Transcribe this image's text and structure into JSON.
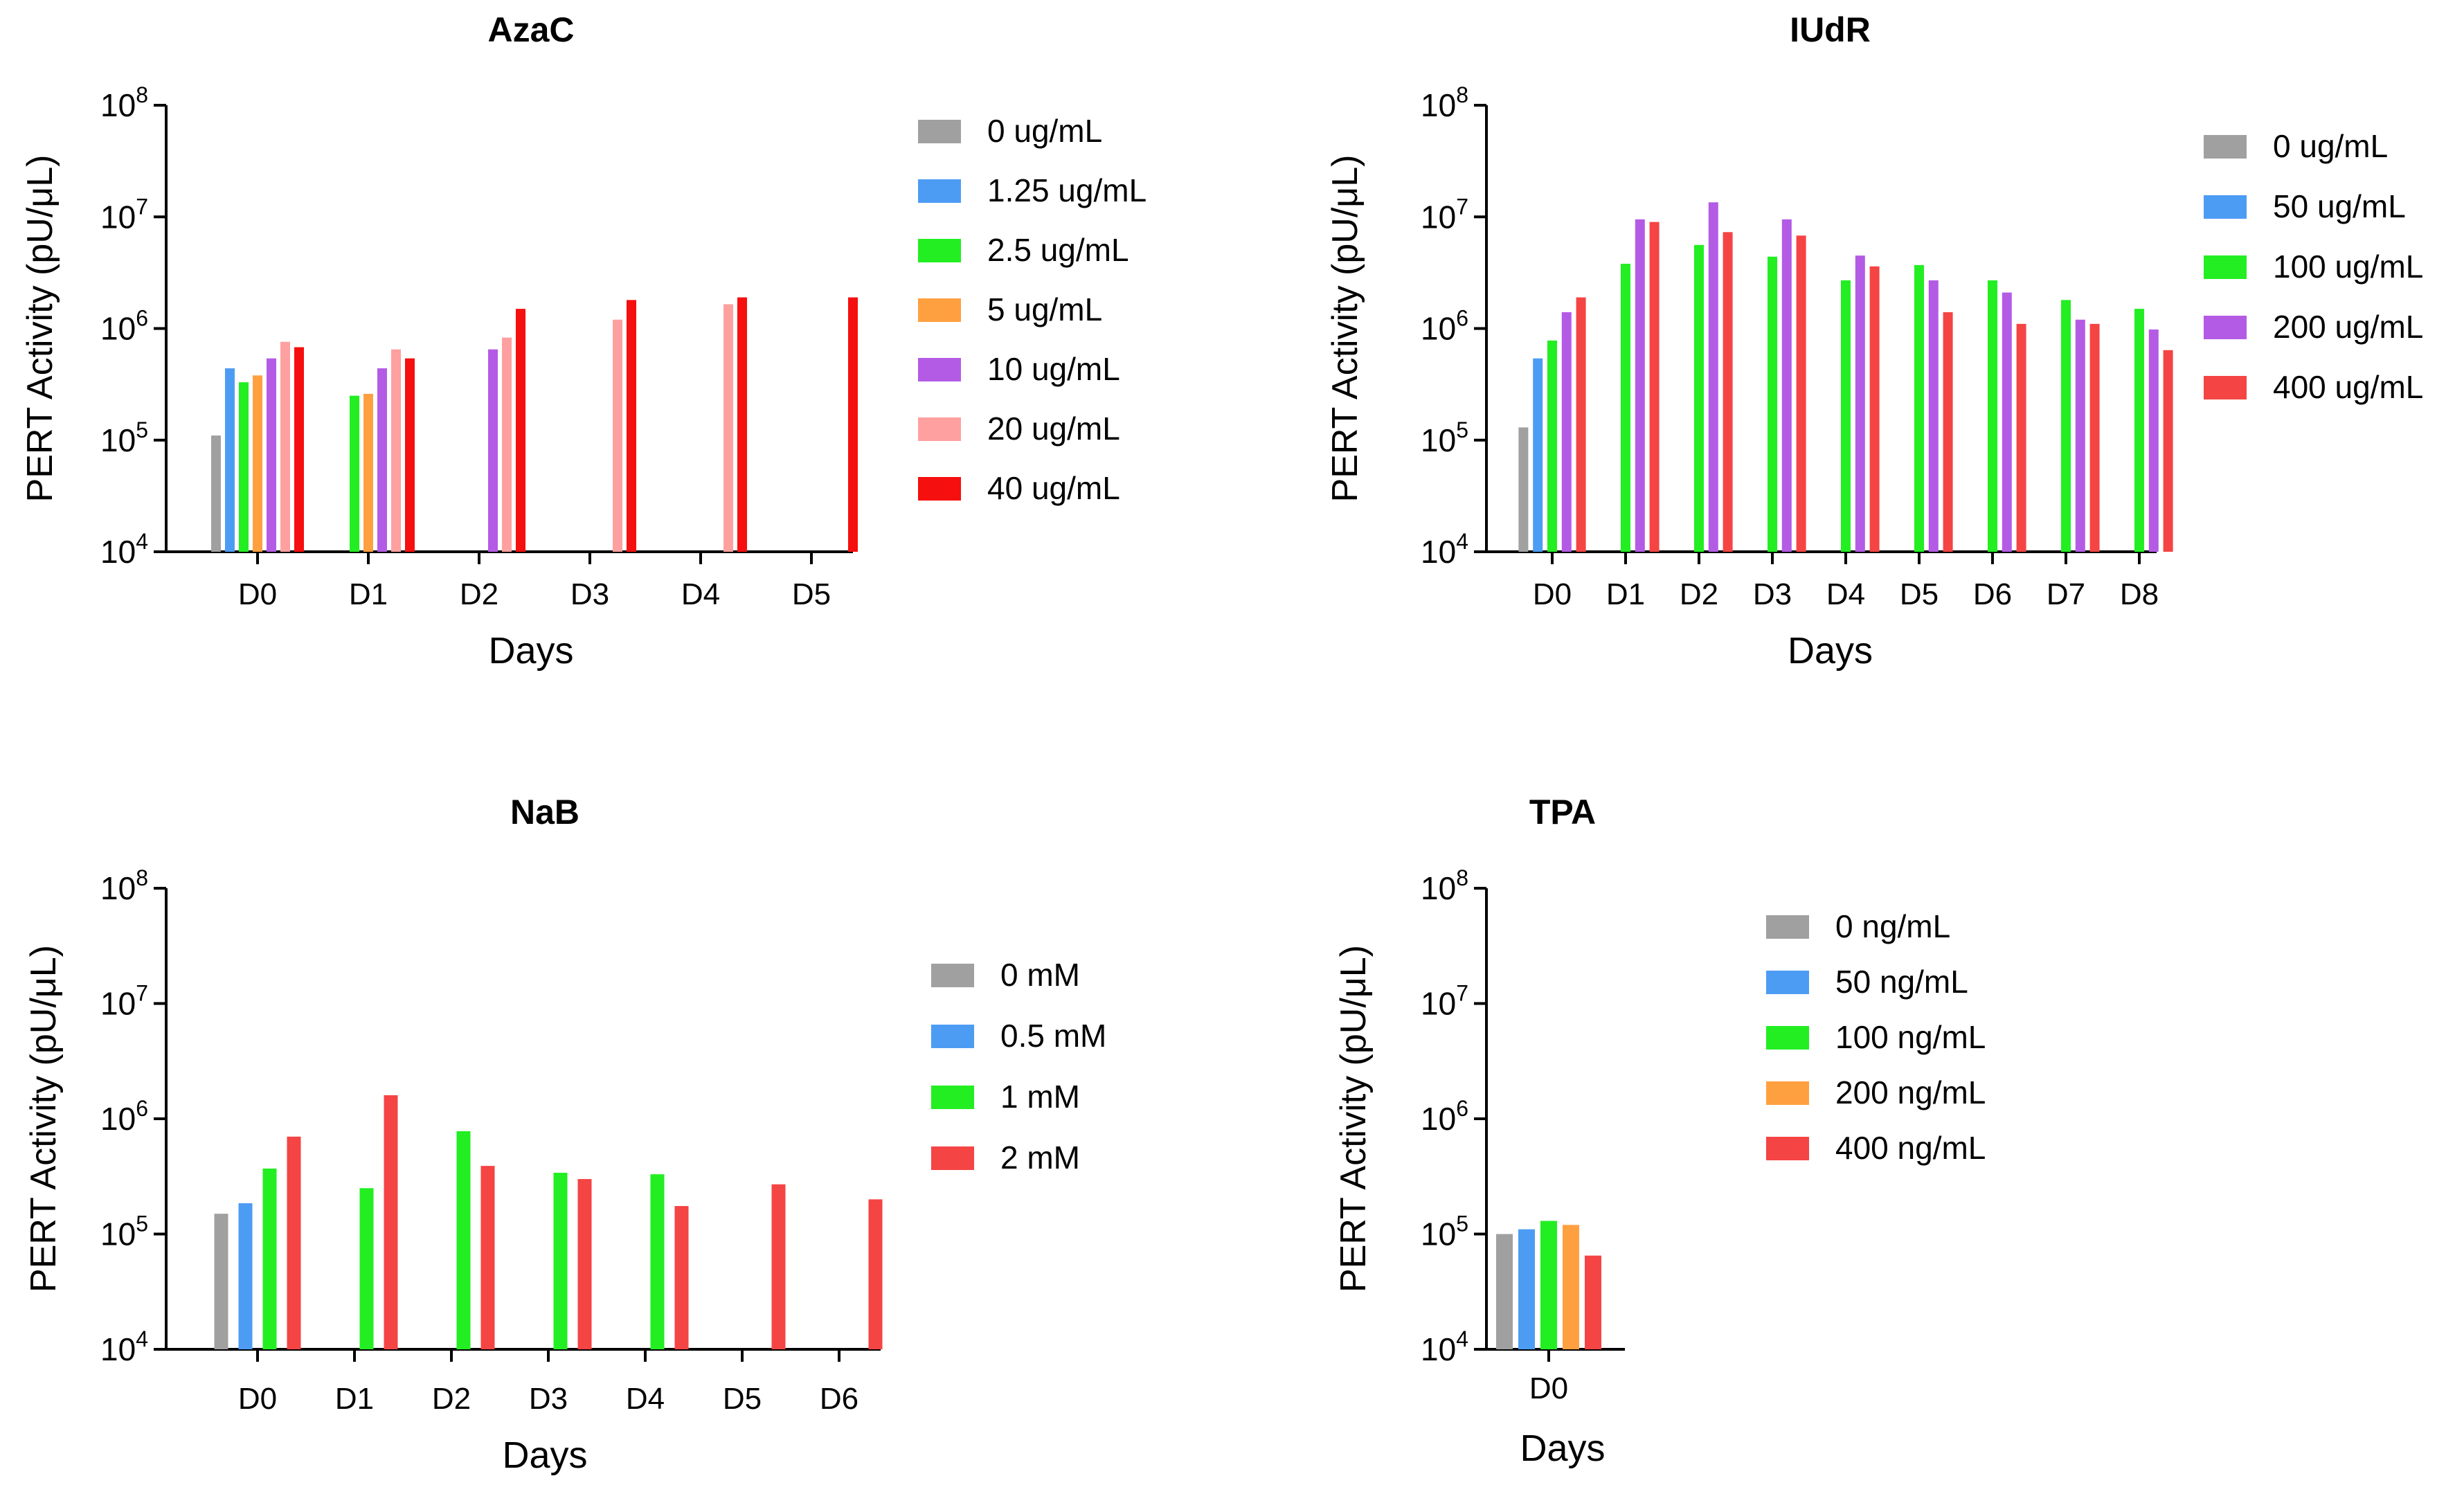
{
  "chart_data": [
    {
      "type": "bar",
      "title": "AzaC",
      "xlabel": "Days",
      "ylabel": "PERT Activity (pU/μL)",
      "yscale": "log",
      "ylim": [
        10000,
        100000000
      ],
      "yticks": [
        {
          "base": "10",
          "exp": "4"
        },
        {
          "base": "10",
          "exp": "5"
        },
        {
          "base": "10",
          "exp": "6"
        },
        {
          "base": "10",
          "exp": "7"
        },
        {
          "base": "10",
          "exp": "8"
        }
      ],
      "categories": [
        "D0",
        "D1",
        "D2",
        "D3",
        "D4",
        "D5"
      ],
      "legend_position": "right",
      "series": [
        {
          "name": "0 ug/mL",
          "color": "#a0a0a0",
          "values": [
            110000,
            null,
            null,
            null,
            null,
            null
          ]
        },
        {
          "name": "1.25 ug/mL",
          "color": "#4d9cf4",
          "values": [
            440000,
            null,
            null,
            null,
            null,
            null
          ]
        },
        {
          "name": "2.5 ug/mL",
          "color": "#22ee22",
          "values": [
            330000,
            250000,
            null,
            null,
            null,
            null
          ]
        },
        {
          "name": "5 ug/mL",
          "color": "#ffa040",
          "values": [
            380000,
            260000,
            null,
            null,
            null,
            null
          ]
        },
        {
          "name": "10 ug/mL",
          "color": "#b45be6",
          "values": [
            540000,
            440000,
            650000,
            null,
            null,
            null
          ]
        },
        {
          "name": "20 ug/mL",
          "color": "#ffa0a0",
          "values": [
            760000,
            650000,
            830000,
            1200000,
            1650000,
            null
          ]
        },
        {
          "name": "40 ug/mL",
          "color": "#f50f0f",
          "values": [
            680000,
            540000,
            1500000,
            1800000,
            1900000,
            1900000
          ]
        }
      ]
    },
    {
      "type": "bar",
      "title": "IUdR",
      "xlabel": "Days",
      "ylabel": "PERT Activity (pU/μL)",
      "yscale": "log",
      "ylim": [
        10000,
        100000000
      ],
      "yticks": [
        {
          "base": "10",
          "exp": "4"
        },
        {
          "base": "10",
          "exp": "5"
        },
        {
          "base": "10",
          "exp": "6"
        },
        {
          "base": "10",
          "exp": "7"
        },
        {
          "base": "10",
          "exp": "8"
        }
      ],
      "categories": [
        "D0",
        "D1",
        "D2",
        "D3",
        "D4",
        "D5",
        "D6",
        "D7",
        "D8"
      ],
      "legend_position": "right",
      "series": [
        {
          "name": "0 ug/mL",
          "color": "#a0a0a0",
          "values": [
            130000,
            null,
            null,
            null,
            null,
            null,
            null,
            null,
            null
          ]
        },
        {
          "name": "50 ug/mL",
          "color": "#4d9cf4",
          "values": [
            540000,
            null,
            null,
            null,
            null,
            null,
            null,
            null,
            null
          ]
        },
        {
          "name": "100 ug/mL",
          "color": "#22ee22",
          "values": [
            780000,
            3800000,
            5600000,
            4400000,
            2700000,
            3700000,
            2700000,
            1800000,
            1500000
          ]
        },
        {
          "name": "200 ug/mL",
          "color": "#b45be6",
          "values": [
            1400000,
            9500000,
            13500000,
            9500000,
            4500000,
            2700000,
            2100000,
            1200000,
            980000
          ]
        },
        {
          "name": "400 ug/mL",
          "color": "#f54444",
          "values": [
            1900000,
            9000000,
            7300000,
            6800000,
            3600000,
            1400000,
            1100000,
            1100000,
            640000
          ]
        }
      ]
    },
    {
      "type": "bar",
      "title": "NaB",
      "xlabel": "Days",
      "ylabel": "PERT Activity (pU/μL)",
      "yscale": "log",
      "ylim": [
        10000,
        100000000
      ],
      "yticks": [
        {
          "base": "10",
          "exp": "4"
        },
        {
          "base": "10",
          "exp": "5"
        },
        {
          "base": "10",
          "exp": "6"
        },
        {
          "base": "10",
          "exp": "7"
        },
        {
          "base": "10",
          "exp": "8"
        }
      ],
      "categories": [
        "D0",
        "D1",
        "D2",
        "D3",
        "D4",
        "D5",
        "D6"
      ],
      "legend_position": "right",
      "series": [
        {
          "name": "0 mM",
          "color": "#a0a0a0",
          "values": [
            150000,
            null,
            null,
            null,
            null,
            null,
            null
          ]
        },
        {
          "name": "0.5 mM",
          "color": "#4d9cf4",
          "values": [
            185000,
            null,
            null,
            null,
            null,
            null,
            null
          ]
        },
        {
          "name": "1 mM",
          "color": "#22ee22",
          "values": [
            370000,
            250000,
            780000,
            340000,
            330000,
            null,
            null
          ]
        },
        {
          "name": "2 mM",
          "color": "#f54444",
          "values": [
            700000,
            1600000,
            390000,
            300000,
            175000,
            270000,
            200000
          ]
        }
      ]
    },
    {
      "type": "bar",
      "title": "TPA",
      "xlabel": "Days",
      "ylabel": "PERT Activity (pU/μL)",
      "yscale": "log",
      "ylim": [
        10000,
        100000000
      ],
      "yticks": [
        {
          "base": "10",
          "exp": "4"
        },
        {
          "base": "10",
          "exp": "5"
        },
        {
          "base": "10",
          "exp": "6"
        },
        {
          "base": "10",
          "exp": "7"
        },
        {
          "base": "10",
          "exp": "8"
        }
      ],
      "categories": [
        "D0"
      ],
      "legend_position": "right",
      "series": [
        {
          "name": "0 ng/mL",
          "color": "#a0a0a0",
          "values": [
            100000
          ]
        },
        {
          "name": "50 ng/mL",
          "color": "#4d9cf4",
          "values": [
            110000
          ]
        },
        {
          "name": "100 ng/mL",
          "color": "#22ee22",
          "values": [
            130000
          ]
        },
        {
          "name": "200 ng/mL",
          "color": "#ffa040",
          "values": [
            120000
          ]
        },
        {
          "name": "400 ng/mL",
          "color": "#f54444",
          "values": [
            65000
          ]
        }
      ]
    }
  ]
}
